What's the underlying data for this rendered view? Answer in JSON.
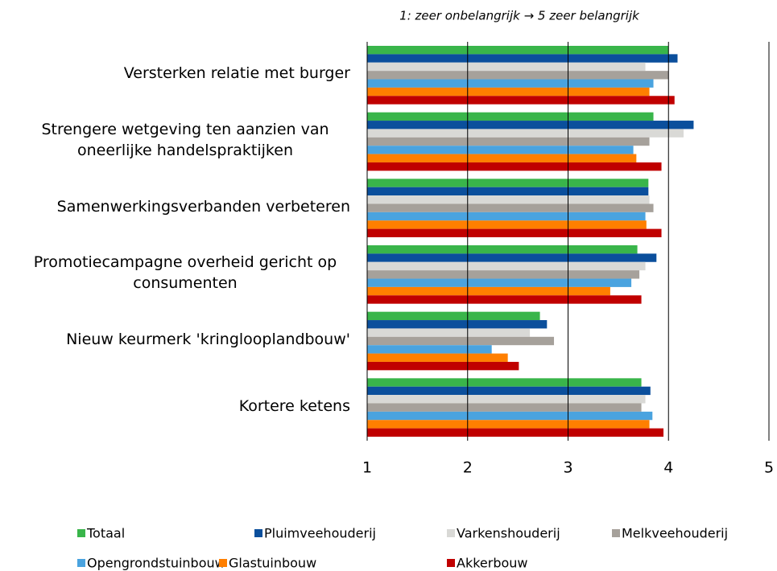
{
  "chart_data": {
    "type": "barh",
    "subtitle": "1: zeer onbelangrijk → 5 zeer belangrijk",
    "categories": [
      "Versterken relatie met burger",
      "Strengere wetgeving ten aanzien van oneerlijke handelspraktijken",
      "Samenwerkingsverbanden verbeteren",
      "Promotiecampagne overheid gericht op consumenten",
      "Nieuw keurmerk 'kringlooplandbouw'",
      "Kortere ketens"
    ],
    "series": [
      {
        "name": "Totaal",
        "color": "#39b54a",
        "values": [
          4.0,
          3.85,
          3.8,
          3.69,
          2.72,
          3.73
        ]
      },
      {
        "name": "Pluimveehouderij",
        "color": "#0b4f9c",
        "values": [
          4.09,
          4.25,
          3.8,
          3.88,
          2.79,
          3.82
        ]
      },
      {
        "name": "Varkenshouderij",
        "color": "#d9d9d6",
        "values": [
          3.77,
          4.15,
          3.81,
          3.77,
          2.62,
          3.77
        ]
      },
      {
        "name": "Melkveehouderij",
        "color": "#a6a19b",
        "values": [
          4.0,
          3.81,
          3.85,
          3.71,
          2.86,
          3.73
        ]
      },
      {
        "name": "Opengrondstuinbouw",
        "color": "#4aa3df",
        "values": [
          3.85,
          3.65,
          3.77,
          3.63,
          2.24,
          3.84
        ]
      },
      {
        "name": "Glastuinbouw",
        "color": "#ff7f00",
        "values": [
          3.81,
          3.68,
          3.78,
          3.42,
          2.4,
          3.81
        ]
      },
      {
        "name": "Akkerbouw",
        "color": "#c00000",
        "values": [
          4.06,
          3.93,
          3.93,
          3.73,
          2.51,
          3.95
        ]
      }
    ],
    "xlim": [
      1,
      5
    ],
    "xticks": [
      1,
      2,
      3,
      4,
      5
    ],
    "grid": true
  }
}
